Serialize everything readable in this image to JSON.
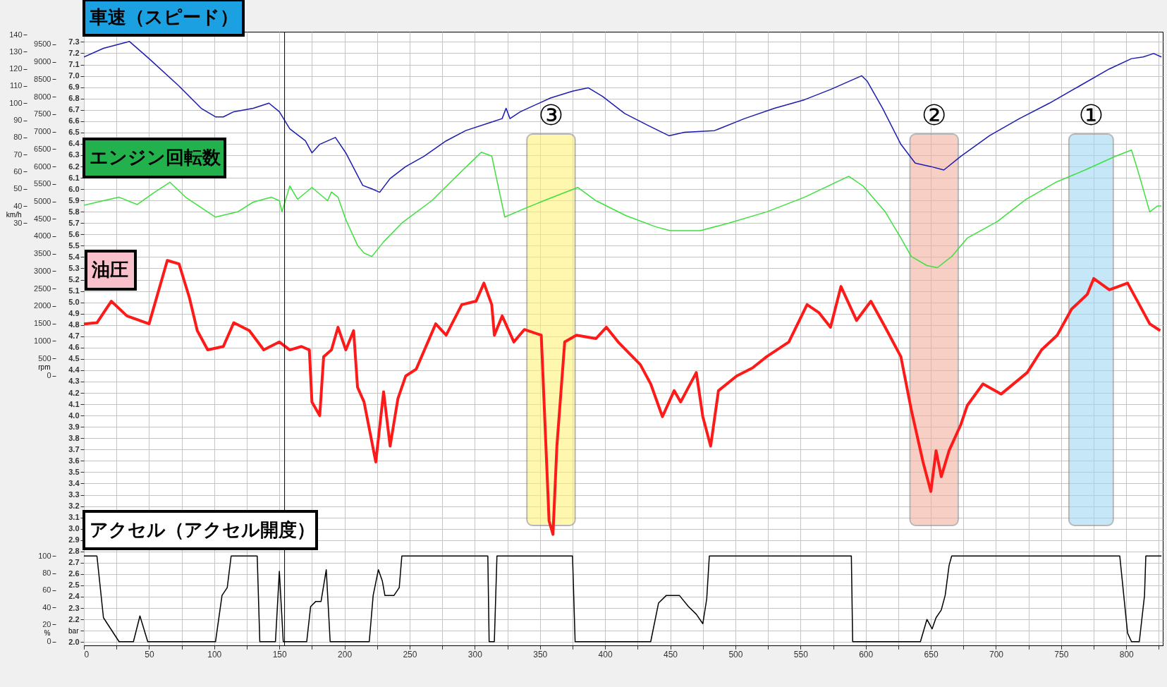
{
  "chart_data": [
    {
      "type": "line",
      "xlim": [
        0,
        828
      ],
      "xticks": [
        0,
        {
          "value": 25,
          "label": null
        },
        50,
        {
          "value": 75,
          "label": null
        },
        100,
        {
          "value": 125,
          "label": null
        },
        150,
        {
          "value": 175,
          "label": null
        },
        200,
        {
          "value": 225,
          "label": null
        },
        250,
        {
          "value": 275,
          "label": null
        },
        300,
        {
          "value": 325,
          "label": null
        },
        350,
        {
          "value": 375,
          "label": null
        },
        400,
        {
          "value": 425,
          "label": null
        },
        450,
        {
          "value": 475,
          "label": null
        },
        500,
        {
          "value": 525,
          "label": null
        },
        550,
        {
          "value": 575,
          "label": null
        },
        600,
        {
          "value": 625,
          "label": null
        },
        650,
        {
          "value": 675,
          "label": null
        },
        700,
        {
          "value": 725,
          "label": null
        },
        750,
        {
          "value": 775,
          "label": null
        },
        800,
        {
          "value": 825,
          "label": null
        }
      ],
      "ylabel": "km/h",
      "ylim": [
        -216.5,
        141.7
      ],
      "yticks": [
        30,
        40,
        50,
        60,
        70,
        80,
        90,
        100,
        110,
        120,
        130,
        140
      ],
      "y2label": "rpm",
      "y2lim": [
        -7728,
        9863
      ],
      "y2ticks": [
        0,
        500,
        1000,
        1500,
        2000,
        2500,
        3000,
        3500,
        4000,
        4500,
        5000,
        5500,
        6000,
        6500,
        7000,
        7500,
        8000,
        8500,
        9000,
        9500
      ],
      "y3label": "bar",
      "y3lim": [
        1.97,
        7.39
      ],
      "y3ticks": [
        {
          "value": 2,
          "label": "2.0"
        },
        {
          "value": 2.1,
          "label": null
        },
        2.2,
        2.3,
        2.4,
        2.5,
        2.6,
        2.7,
        2.8,
        2.9,
        {
          "value": 3,
          "label": "3.0"
        },
        3.1,
        3.2,
        3.3,
        3.4,
        3.5,
        3.6,
        3.7,
        3.8,
        3.9,
        {
          "value": 4,
          "label": "4.0"
        },
        4.1,
        4.2,
        4.3,
        4.4,
        4.5,
        4.6,
        4.7,
        4.8,
        4.9,
        {
          "value": 5,
          "label": "5.0"
        },
        5.1,
        5.2,
        5.3,
        5.4,
        5.5,
        5.6,
        5.7,
        5.8,
        5.9,
        {
          "value": 6,
          "label": "6.0"
        },
        6.1,
        6.2,
        6.3,
        6.4,
        6.5,
        6.6,
        6.7,
        6.8,
        6.9,
        {
          "value": 7,
          "label": "7.0"
        },
        7.1,
        7.2,
        7.3
      ],
      "grid": true,
      "tick_labels": "y",
      "series": [
        {
          "name": "車速（スピード）",
          "color": "#1c1cb0",
          "x": [
            0,
            15,
            35,
            50,
            73,
            90,
            101,
            107,
            115,
            130,
            142,
            150,
            158,
            170,
            175,
            181,
            193,
            201,
            214,
            221,
            227,
            235,
            247,
            261,
            278,
            293,
            313,
            321,
            324,
            327,
            335,
            358,
            375,
            387,
            398,
            415,
            433,
            449,
            461,
            484,
            507,
            530,
            553,
            573,
            597,
            601,
            613,
            627,
            638,
            650,
            660,
            673,
            695,
            718,
            741,
            764,
            787,
            804,
            813,
            821,
            827
          ],
          "values": [
            127,
            132,
            136,
            126,
            110,
            97,
            92,
            92,
            95,
            97,
            100,
            95,
            85,
            78,
            71,
            76,
            80,
            71,
            52,
            50,
            48,
            56,
            63,
            69,
            78,
            84,
            89,
            91,
            97,
            91,
            95,
            103,
            107,
            109,
            104,
            94,
            87,
            81,
            83,
            84,
            91,
            97,
            102,
            108,
            116,
            113,
            97,
            76,
            65,
            63,
            61,
            69,
            81,
            91,
            100,
            110,
            120,
            126,
            127,
            129,
            127
          ]
        },
        {
          "name": "エンジン回転数",
          "color": "#3ee03e",
          "axis": "y2",
          "x": [
            0,
            15,
            27,
            41,
            53,
            66,
            78,
            101,
            118,
            130,
            144,
            150,
            152,
            158,
            164,
            175,
            187,
            190,
            195,
            201,
            210,
            215,
            221,
            230,
            244,
            267,
            290,
            299,
            305,
            313,
            323,
            336,
            353,
            379,
            393,
            416,
            439,
            450,
            473,
            495,
            524,
            553,
            587,
            598,
            615,
            627,
            635,
            647,
            655,
            666,
            678,
            701,
            723,
            746,
            769,
            792,
            804,
            809,
            818,
            824,
            827
          ],
          "values": [
            4890,
            5020,
            5120,
            4910,
            5230,
            5550,
            5120,
            4550,
            4700,
            4980,
            5120,
            5020,
            4700,
            5440,
            5060,
            5400,
            5020,
            5270,
            5120,
            4480,
            3740,
            3520,
            3420,
            3840,
            4380,
            5020,
            5870,
            6190,
            6410,
            6300,
            4550,
            4760,
            5020,
            5400,
            5020,
            4590,
            4270,
            4160,
            4160,
            4380,
            4700,
            5120,
            5720,
            5440,
            4700,
            3950,
            3420,
            3160,
            3100,
            3420,
            3950,
            4420,
            5060,
            5550,
            5910,
            6300,
            6470,
            5870,
            4700,
            4870,
            4870
          ]
        },
        {
          "name": "油圧",
          "color": "#ff1a1a",
          "axis": "y3",
          "x": [
            0,
            10,
            21,
            33,
            50,
            64,
            73,
            81,
            87,
            95,
            107,
            115,
            127,
            138,
            150,
            158,
            167,
            173,
            175,
            181,
            184,
            190,
            195,
            201,
            207,
            210,
            215,
            224,
            230,
            235,
            241,
            247,
            255,
            270,
            278,
            290,
            301,
            307,
            313,
            315,
            321,
            330,
            338,
            351,
            357,
            360,
            363,
            369,
            378,
            393,
            401,
            410,
            427,
            435,
            444,
            453,
            458,
            470,
            475,
            481,
            487,
            501,
            513,
            524,
            541,
            555,
            564,
            573,
            581,
            593,
            604,
            615,
            627,
            635,
            644,
            650,
            654,
            658,
            664,
            673,
            678,
            690,
            704,
            724,
            735,
            747,
            758,
            770,
            775,
            787,
            801,
            810,
            818,
            826
          ],
          "values": [
            4.81,
            4.82,
            5.01,
            4.88,
            4.81,
            5.37,
            5.34,
            5.04,
            4.75,
            4.58,
            4.61,
            4.82,
            4.75,
            4.58,
            4.65,
            4.58,
            4.61,
            4.58,
            4.12,
            4.0,
            4.52,
            4.58,
            4.78,
            4.58,
            4.75,
            4.25,
            4.12,
            3.59,
            4.21,
            3.73,
            4.15,
            4.35,
            4.41,
            4.81,
            4.71,
            4.98,
            5.01,
            5.17,
            4.98,
            4.71,
            4.88,
            4.65,
            4.76,
            4.71,
            3.07,
            2.95,
            3.73,
            4.65,
            4.71,
            4.68,
            4.78,
            4.65,
            4.45,
            4.28,
            3.99,
            4.22,
            4.12,
            4.38,
            3.99,
            3.73,
            4.22,
            4.35,
            4.42,
            4.52,
            4.65,
            4.98,
            4.91,
            4.78,
            5.14,
            4.84,
            5.01,
            4.78,
            4.52,
            4.05,
            3.59,
            3.33,
            3.69,
            3.46,
            3.69,
            3.92,
            4.09,
            4.28,
            4.19,
            4.38,
            4.58,
            4.71,
            4.94,
            5.07,
            5.21,
            5.11,
            5.17,
            4.98,
            4.81,
            4.75
          ]
        }
      ],
      "bands": [
        {
          "axis": "x",
          "from": 756,
          "to": 790,
          "label": "①",
          "color": "#9fd8f2"
        },
        {
          "axis": "x",
          "from": 634,
          "to": 671,
          "label": "②",
          "color": "#f4b0a0"
        },
        {
          "axis": "x",
          "from": 340,
          "to": 377,
          "label": "③",
          "color": "#fff27a"
        }
      ],
      "ref_lines": [
        {
          "axis": "x",
          "value": 154,
          "color": "#000000"
        }
      ]
    },
    {
      "type": "line",
      "xlim": [
        0,
        828
      ],
      "xticks": [
        0,
        {
          "value": 25,
          "label": null
        },
        50,
        {
          "value": 75,
          "label": null
        },
        100,
        {
          "value": 125,
          "label": null
        },
        150,
        {
          "value": 175,
          "label": null
        },
        200,
        {
          "value": 225,
          "label": null
        },
        250,
        {
          "value": 275,
          "label": null
        },
        300,
        {
          "value": 325,
          "label": null
        },
        350,
        {
          "value": 375,
          "label": null
        },
        400,
        {
          "value": 425,
          "label": null
        },
        450,
        {
          "value": 475,
          "label": null
        },
        500,
        {
          "value": 525,
          "label": null
        },
        550,
        {
          "value": 575,
          "label": null
        },
        600,
        {
          "value": 625,
          "label": null
        },
        650,
        {
          "value": 675,
          "label": null
        },
        700,
        {
          "value": 725,
          "label": null
        },
        750,
        {
          "value": 775,
          "label": null
        },
        800,
        {
          "value": 825,
          "label": null
        }
      ],
      "ylabel": "%",
      "ylim": [
        -4.3,
        104.3
      ],
      "yticks": [
        0,
        20,
        40,
        60,
        80,
        100
      ],
      "grid": "x",
      "series": [
        {
          "name": "アクセル（アクセル開度）",
          "color": "#000000",
          "x": [
            0,
            10,
            15,
            27,
            38,
            43,
            49,
            101,
            106,
            110,
            113,
            133,
            135,
            147,
            150,
            153,
            171,
            174,
            178,
            182,
            186,
            189,
            219,
            222,
            226,
            229,
            231,
            238,
            242,
            244,
            310,
            311,
            315,
            317,
            375,
            377,
            435,
            441,
            447,
            457,
            464,
            470,
            475,
            478,
            480,
            589,
            590,
            642,
            647,
            651,
            654,
            658,
            661,
            664,
            666,
            795,
            801,
            804,
            810,
            814,
            815,
            827
          ],
          "values": [
            100,
            100,
            28,
            0,
            0,
            30,
            0,
            0,
            54,
            63,
            100,
            100,
            0,
            0,
            82,
            0,
            0,
            41,
            47,
            47,
            84,
            0,
            0,
            54,
            84,
            71,
            54,
            54,
            63,
            100,
            100,
            0,
            0,
            100,
            100,
            0,
            0,
            45,
            54,
            54,
            41,
            32,
            21,
            50,
            100,
            100,
            0,
            0,
            26,
            15,
            28,
            37,
            54,
            89,
            100,
            100,
            10,
            0,
            0,
            54,
            100,
            100
          ]
        }
      ]
    }
  ]
}
